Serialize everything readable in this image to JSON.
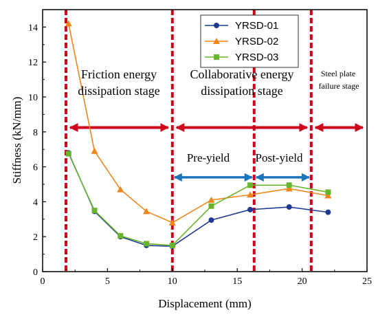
{
  "chart_data": {
    "type": "line",
    "xlabel": "Displacement (mm)",
    "ylabel": "Stiffness (kN/mm)",
    "xlim": [
      0,
      25
    ],
    "ylim": [
      0,
      15
    ],
    "x_ticks": [
      0,
      5,
      10,
      15,
      20,
      25
    ],
    "y_ticks": [
      0,
      2,
      4,
      6,
      8,
      10,
      12,
      14
    ],
    "grid": false,
    "legend_position": "top-center",
    "series": [
      {
        "name": "YRSD-01",
        "color": "#1f3a93",
        "marker": "circle",
        "x": [
          2,
          4,
          6,
          8,
          10,
          13,
          16,
          19,
          22
        ],
        "y": [
          6.8,
          3.45,
          2.0,
          1.5,
          1.45,
          2.95,
          3.55,
          3.7,
          3.4
        ]
      },
      {
        "name": "YRSD-02",
        "color": "#f0851b",
        "marker": "triangle",
        "x": [
          2,
          4,
          6,
          8,
          10,
          13,
          16,
          19,
          22
        ],
        "y": [
          14.2,
          6.9,
          4.7,
          3.45,
          2.8,
          4.1,
          4.4,
          4.75,
          4.35
        ]
      },
      {
        "name": "YRSD-03",
        "color": "#6ab42d",
        "marker": "square",
        "x": [
          2,
          4,
          6,
          8,
          10,
          13,
          16,
          19,
          22
        ],
        "y": [
          6.75,
          3.5,
          2.05,
          1.6,
          1.5,
          3.75,
          4.95,
          4.95,
          4.55
        ]
      }
    ],
    "stage_lines_x": [
      1.8,
      10,
      16.3,
      20.7
    ],
    "annotations": {
      "friction_1": "Friction energy",
      "friction_2": "dissipation stage",
      "collab_1": "Collaborative energy",
      "collab_2": "dissipation stage",
      "steel_1": "Steel plate",
      "steel_2": "failure stage",
      "pre_yield": "Pre-yield",
      "post_yield": "Post-yield"
    },
    "colors": {
      "stage_line": "#d0021b",
      "stage_arrow": "#d0021b",
      "yield_arrow": "#1c75bc"
    }
  }
}
